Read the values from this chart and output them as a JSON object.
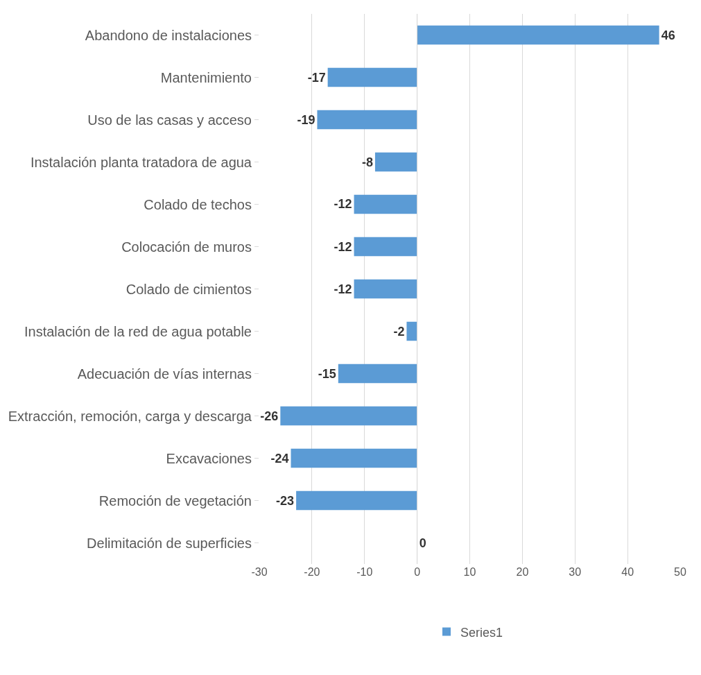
{
  "chart_data": {
    "type": "bar",
    "orientation": "horizontal",
    "categories": [
      "Abandono de instalaciones",
      "Mantenimiento",
      "Uso de las casas y acceso",
      "Instalación planta tratadora de agua",
      "Colado de techos",
      "Colocación de muros",
      "Colado de cimientos",
      "Instalación de la red de agua potable",
      "Adecuación de vías internas",
      "Extracción, remoción, carga y descarga",
      "Excavaciones",
      "Remoción de vegetación",
      "Delimitación de superficies"
    ],
    "series": [
      {
        "name": "Series1",
        "color": "#5b9bd5",
        "values": [
          46,
          -17,
          -19,
          -8,
          -12,
          -12,
          -12,
          -2,
          -15,
          -26,
          -24,
          -23,
          0
        ]
      }
    ],
    "xlim": [
      -30,
      50
    ],
    "xticks": [
      -30,
      -20,
      -10,
      0,
      10,
      20,
      30,
      40,
      50
    ],
    "grid": "x",
    "legend": "bottom",
    "data_labels": true
  }
}
